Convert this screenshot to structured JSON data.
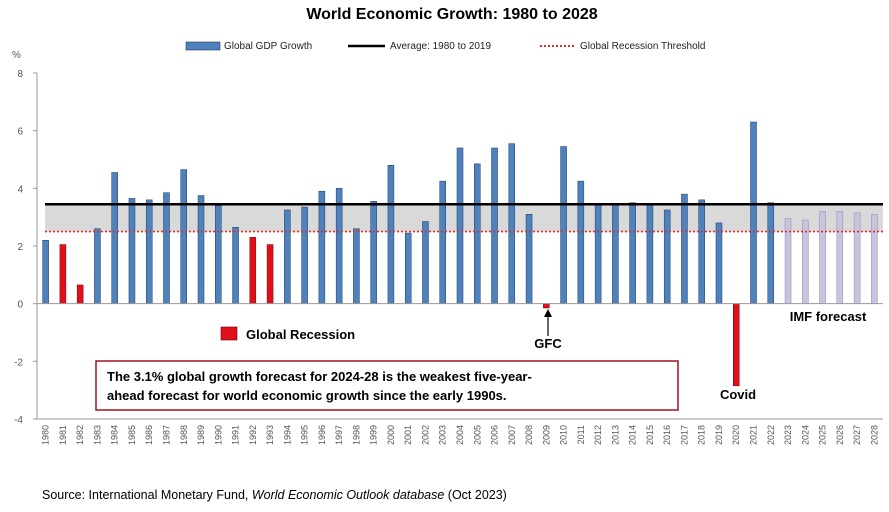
{
  "chart_data": {
    "type": "bar",
    "title": "World Economic Growth: 1980 to 2028",
    "ylabel": "%",
    "ylim": [
      -4,
      8
    ],
    "yticks": [
      -4,
      -2,
      0,
      2,
      4,
      6,
      8
    ],
    "categories": [
      "1980",
      "1981",
      "1982",
      "1983",
      "1984",
      "1985",
      "1986",
      "1987",
      "1988",
      "1989",
      "1990",
      "1991",
      "1992",
      "1993",
      "1994",
      "1995",
      "1996",
      "1997",
      "1998",
      "1999",
      "2000",
      "2001",
      "2002",
      "2003",
      "2004",
      "2005",
      "2006",
      "2007",
      "2008",
      "2009",
      "2010",
      "2011",
      "2012",
      "2013",
      "2014",
      "2015",
      "2016",
      "2017",
      "2018",
      "2019",
      "2020",
      "2021",
      "2022",
      "2023",
      "2024",
      "2025",
      "2026",
      "2027",
      "2028"
    ],
    "series": [
      {
        "name": "Global GDP Growth",
        "values": [
          2.2,
          2.05,
          0.65,
          2.6,
          4.55,
          3.65,
          3.6,
          3.85,
          4.65,
          3.75,
          3.4,
          2.65,
          2.3,
          2.05,
          3.25,
          3.35,
          3.9,
          4.0,
          2.6,
          3.55,
          4.8,
          2.45,
          2.85,
          4.25,
          5.4,
          4.85,
          5.4,
          5.55,
          3.1,
          -0.15,
          5.45,
          4.25,
          3.45,
          3.45,
          3.5,
          3.45,
          3.25,
          3.8,
          3.6,
          2.8,
          -2.85,
          6.3,
          3.5,
          2.95,
          2.9,
          3.2,
          3.2,
          3.15,
          3.1
        ]
      }
    ],
    "recession_years": [
      "1981",
      "1982",
      "1992",
      "1993",
      "2009",
      "2020"
    ],
    "forecast_years": [
      "2023",
      "2024",
      "2025",
      "2026",
      "2027",
      "2028"
    ],
    "average_line": {
      "name": "Average: 1980 to 2019",
      "value": 3.45
    },
    "recession_threshold": {
      "name": "Global Recession Threshold",
      "value": 2.5
    },
    "legend": [
      "Global GDP Growth",
      "Average: 1980 to 2019",
      "Global Recession Threshold"
    ],
    "legend_position": "top",
    "band": [
      2.5,
      3.45
    ],
    "colors": {
      "bar": "#4f81bd",
      "bar_edge": "#1f3a60",
      "recession": "#e0101a",
      "forecast": "#c9c3e0",
      "average": "#000000",
      "threshold": "#e03030",
      "band": "#d9d9d9",
      "callout_border": "#a01020"
    },
    "annotations": {
      "global_recession": "Global Recession",
      "gfc": "GFC",
      "covid": "Covid",
      "imf_forecast": "IMF forecast",
      "callout_line1": "The 3.1% global growth forecast for 2024-28 is the weakest five-year-",
      "callout_line2": "ahead forecast for world economic growth since the early 1990s."
    },
    "source": {
      "prefix": "Source: International Monetary Fund, ",
      "italic": "World Economic Outlook database",
      "suffix": " (Oct 2023)"
    }
  }
}
